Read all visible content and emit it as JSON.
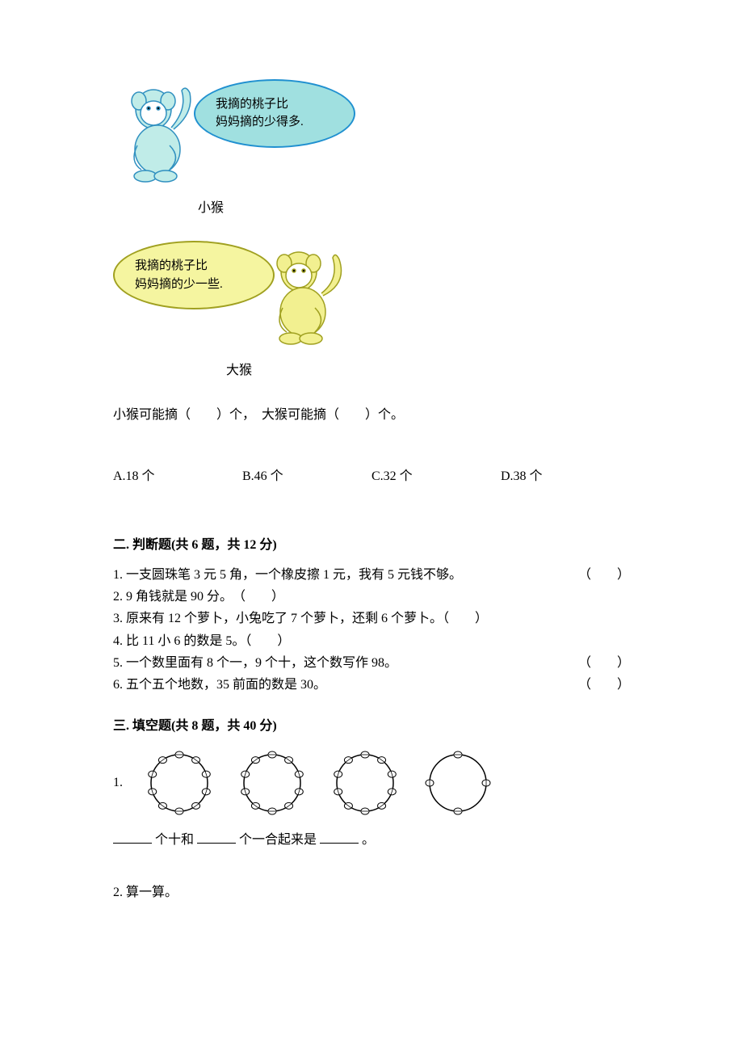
{
  "monkey1": {
    "bubble_line1": "我摘的桃子比",
    "bubble_line2": "妈妈摘的少得多.",
    "label": "小猴",
    "bubble_bg": "#a0e0e0",
    "bubble_border": "#2090d0",
    "body_color": "#c0ece8"
  },
  "monkey2": {
    "bubble_line1": "我摘的桃子比",
    "bubble_line2": "妈妈摘的少一些.",
    "label": "大猴",
    "bubble_bg": "#f5f5a0",
    "bubble_border": "#a0a020",
    "body_color": "#f2f090"
  },
  "fill_question": "小猴可能摘（　　）个，　大猴可能摘（　　）个。",
  "options": {
    "a": "A.18 个",
    "b": "B.46 个",
    "c": "C.32 个",
    "d": "D.38 个"
  },
  "section2": {
    "title": "二. 判断题(共 6 题，共 12 分)",
    "items": [
      {
        "text": "1. 一支圆珠笔 3 元 5 角，一个橡皮擦 1 元，我有 5 元钱不够。",
        "bracket": "（　　）"
      },
      {
        "text": "2. 9 角钱就是 90 分。　（　　）",
        "bracket": ""
      },
      {
        "text": "3. 原来有 12 个萝卜，小兔吃了 7 个萝卜，还剩 6 个萝卜。（　　）",
        "bracket": ""
      },
      {
        "text": "4. 比 11 小 6 的数是 5。（　　）",
        "bracket": ""
      },
      {
        "text": "5. 一个数里面有 8 个一，9 个十，这个数写作 98。",
        "bracket": "（　　）"
      },
      {
        "text": "6. 五个五个地数，35 前面的数是 30。",
        "bracket": "（　　）"
      }
    ]
  },
  "section3": {
    "title": "三. 填空题(共 8 题，共 40 分)",
    "q1_prefix": "1.",
    "bead_counts": [
      10,
      10,
      10,
      4
    ],
    "bead_color": "#ffffff",
    "bead_stroke": "#000000",
    "circle_stroke": "#000000",
    "fill_parts": {
      "p1": "个十和",
      "p2": "个一合起来是",
      "p3": "。"
    },
    "q2": "2. 算一算。"
  }
}
